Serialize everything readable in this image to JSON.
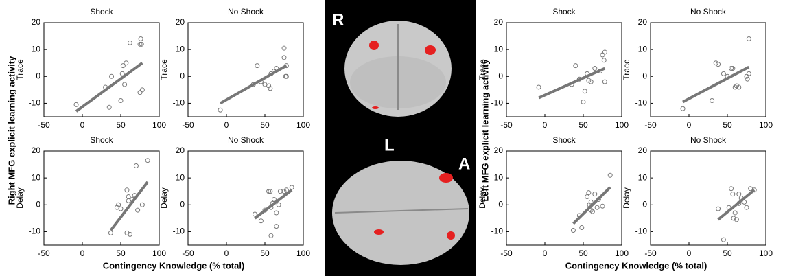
{
  "groups": [
    {
      "ylabel": "Right MFG explicit learning activity",
      "xlabel": "Contingency Knowledge (% total)"
    },
    {
      "ylabel": "Left MFG explicit learning activity",
      "xlabel": "Contingency Knowledge (% total)"
    }
  ],
  "brain": {
    "labels": [
      "R",
      "L",
      "A"
    ]
  },
  "chart_data": [
    {
      "type": "scatter",
      "title": "Shock",
      "ylabel": "Trace",
      "xlim": [
        -50,
        100
      ],
      "ylim": [
        -15,
        20
      ],
      "xticks": [
        -50,
        0,
        50,
        100
      ],
      "yticks": [
        -10,
        0,
        10,
        20
      ],
      "color": "#777777",
      "x": [
        -8,
        35,
        30,
        38,
        50,
        52,
        53,
        55,
        57,
        62,
        75,
        76,
        75,
        78,
        77
      ],
      "values": [
        -10.5,
        -11.5,
        -4,
        0,
        -9,
        1,
        4,
        -3,
        5,
        12.5,
        12,
        14,
        -6,
        -5,
        12
      ],
      "fit_x": [
        -8,
        78
      ],
      "fit_values": [
        -13,
        5
      ]
    },
    {
      "type": "scatter",
      "title": "No Shock",
      "ylabel": "Trace",
      "xlim": [
        -50,
        100
      ],
      "ylim": [
        -15,
        20
      ],
      "xticks": [
        -50,
        0,
        50,
        100
      ],
      "yticks": [
        -10,
        0,
        10,
        20
      ],
      "color": "#777777",
      "x": [
        -8,
        35,
        40,
        45,
        50,
        55,
        57,
        58,
        62,
        65,
        75,
        75,
        77,
        78,
        78
      ],
      "values": [
        -12.5,
        -3,
        4,
        -2,
        -3,
        -3.5,
        -4.5,
        1,
        2,
        3,
        10.5,
        7,
        0,
        0,
        4
      ],
      "fit_x": [
        -8,
        78
      ],
      "fit_values": [
        -10,
        4
      ]
    },
    {
      "type": "scatter",
      "title": "Shock",
      "ylabel": "Delay",
      "xlim": [
        -50,
        100
      ],
      "ylim": [
        -15,
        20
      ],
      "xticks": [
        -50,
        0,
        50,
        100
      ],
      "yticks": [
        -10,
        0,
        10,
        20
      ],
      "color": "#777777",
      "x": [
        37,
        45,
        50,
        47,
        58,
        60,
        58,
        62,
        65,
        68,
        70,
        72,
        78,
        85,
        60
      ],
      "values": [
        -10.5,
        -1,
        -1.5,
        0,
        5.5,
        3,
        -10.5,
        -11,
        2,
        3.5,
        14.5,
        -2,
        0,
        16.5,
        1.5
      ],
      "fit_x": [
        37,
        85
      ],
      "fit_values": [
        -9.5,
        8.5
      ]
    },
    {
      "type": "scatter",
      "title": "No Shock",
      "ylabel": "Delay",
      "xlim": [
        -50,
        100
      ],
      "ylim": [
        -15,
        20
      ],
      "xticks": [
        -50,
        0,
        50,
        100
      ],
      "yticks": [
        -10,
        0,
        10,
        20
      ],
      "color": "#777777",
      "x": [
        37,
        45,
        50,
        55,
        57,
        58,
        58,
        62,
        65,
        65,
        68,
        70,
        75,
        78,
        85,
        60
      ],
      "values": [
        -3.5,
        -6,
        -2,
        5,
        5,
        -11.5,
        -1,
        2,
        -8,
        -3,
        0,
        5,
        5,
        5.5,
        6.5,
        0.5
      ],
      "fit_x": [
        37,
        85
      ],
      "fit_values": [
        -5,
        5.5
      ]
    },
    {
      "type": "scatter",
      "title": "Shock",
      "ylabel": "Trace",
      "xlim": [
        -50,
        100
      ],
      "ylim": [
        -15,
        20
      ],
      "xticks": [
        -50,
        0,
        50,
        100
      ],
      "yticks": [
        -10,
        0,
        10,
        20
      ],
      "color": "#777777",
      "x": [
        -8,
        35,
        40,
        45,
        50,
        52,
        55,
        57,
        60,
        65,
        72,
        75,
        78,
        78,
        77
      ],
      "values": [
        -4,
        -3,
        4,
        -1,
        -9.5,
        -5.5,
        1,
        -1.5,
        -2,
        3,
        2,
        8,
        9,
        -2,
        6
      ],
      "fit_x": [
        -8,
        78
      ],
      "fit_values": [
        -8,
        3
      ]
    },
    {
      "type": "scatter",
      "title": "No Shock",
      "ylabel": "Trace",
      "xlim": [
        -50,
        100
      ],
      "ylim": [
        -15,
        20
      ],
      "xticks": [
        -50,
        0,
        50,
        100
      ],
      "yticks": [
        -10,
        0,
        10,
        20
      ],
      "color": "#777777",
      "x": [
        -8,
        30,
        35,
        38,
        45,
        50,
        55,
        57,
        60,
        62,
        65,
        75,
        76,
        78,
        78
      ],
      "values": [
        -12,
        -9,
        5,
        4.5,
        1,
        0,
        3,
        3,
        -4,
        -3.5,
        -4,
        0,
        -1,
        14,
        1
      ],
      "fit_x": [
        -8,
        78
      ],
      "fit_values": [
        -9.5,
        3.5
      ]
    },
    {
      "type": "scatter",
      "title": "Shock",
      "ylabel": "Delay",
      "xlim": [
        -50,
        100
      ],
      "ylim": [
        -15,
        20
      ],
      "xticks": [
        -50,
        0,
        50,
        100
      ],
      "yticks": [
        -10,
        0,
        10,
        20
      ],
      "color": "#777777",
      "x": [
        37,
        45,
        48,
        55,
        57,
        58,
        60,
        62,
        65,
        68,
        70,
        75,
        85,
        60
      ],
      "values": [
        -9.5,
        -4,
        -8.5,
        3,
        4.5,
        0,
        -2,
        -2.5,
        4,
        -1,
        2,
        -0.5,
        11,
        1
      ],
      "fit_x": [
        37,
        85
      ],
      "fit_values": [
        -7,
        6.5
      ]
    },
    {
      "type": "scatter",
      "title": "No Shock",
      "ylabel": "Delay",
      "xlim": [
        -50,
        100
      ],
      "ylim": [
        -15,
        20
      ],
      "xticks": [
        -50,
        0,
        50,
        100
      ],
      "yticks": [
        -10,
        0,
        10,
        20
      ],
      "color": "#777777",
      "x": [
        38,
        45,
        52,
        55,
        57,
        58,
        60,
        62,
        65,
        68,
        72,
        75,
        80,
        85,
        65
      ],
      "values": [
        -1.5,
        -13,
        -1,
        6,
        4,
        -5,
        -3,
        -5.5,
        0.5,
        2.5,
        1,
        -1,
        6,
        5.5,
        4
      ],
      "fit_x": [
        38,
        85
      ],
      "fit_values": [
        -5.5,
        5.5
      ]
    }
  ]
}
